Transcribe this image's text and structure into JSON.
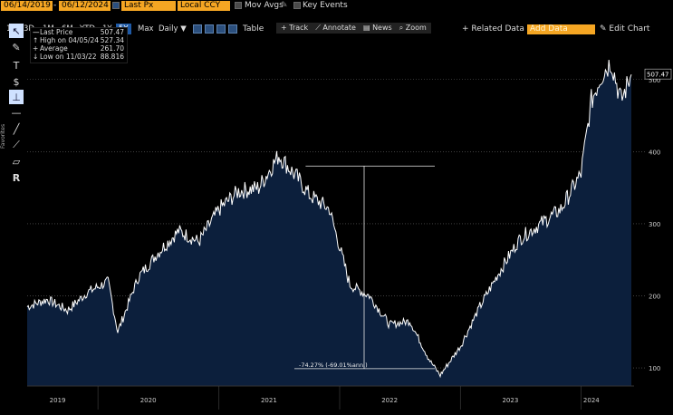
{
  "header": {
    "start_date": "06/14/2019",
    "end_date": "06/12/2024",
    "field": "Last Px",
    "currency": "Local CCY",
    "mov_avgs": "Mov Avgs",
    "key_events": "Key Events",
    "table": "Table",
    "related_data": "+ Related Data",
    "add_data_placeholder": "Add Data",
    "edit_chart": "Edit Chart",
    "periods": [
      "1D",
      "3D",
      "1M",
      "6M",
      "YTD",
      "1Y",
      "5Y",
      "Max"
    ],
    "active_period": "5Y",
    "frequency": "Daily"
  },
  "tools": {
    "track": "Track",
    "annotate": "Annotate",
    "news": "News",
    "zoom": "Zoom"
  },
  "sidebar": {
    "favorites_label": "Favorites"
  },
  "legend": {
    "last_price_label": "Last Price",
    "last_price_value": "507.47",
    "high_label": "High on 04/05/24",
    "high_value": "527.34",
    "average_label": "Average",
    "average_value": "261.70",
    "low_label": "Low on 11/03/22",
    "low_value": "88.816"
  },
  "annotation": {
    "text": "-74.27% (-69.01%ann.)"
  },
  "colors": {
    "area_fill": "#0c1f3c",
    "line": "#ffffff",
    "accent_orange": "#f5a623",
    "active_blue": "#1f5aa6"
  },
  "chart_data": {
    "type": "area",
    "y_tick_labels": [
      "100",
      "200",
      "300",
      "400",
      "500"
    ],
    "ylim": [
      75,
      560
    ],
    "x_tick_labels": [
      "2019",
      "2020",
      "2021",
      "2022",
      "2023",
      "2024"
    ],
    "last_value_label": "507.47",
    "x": [
      "2019-06",
      "2019-08",
      "2019-10",
      "2019-12",
      "2020-02",
      "2020-03",
      "2020-05",
      "2020-07",
      "2020-09",
      "2020-11",
      "2021-01",
      "2021-03",
      "2021-05",
      "2021-07",
      "2021-09",
      "2021-10",
      "2021-11",
      "2021-12",
      "2022-02",
      "2022-04",
      "2022-06",
      "2022-08",
      "2022-10",
      "2022-11",
      "2023-01",
      "2023-03",
      "2023-05",
      "2023-07",
      "2023-09",
      "2023-11",
      "2024-01",
      "2024-02",
      "2024-03",
      "2024-04",
      "2024-05",
      "2024-06"
    ],
    "values": [
      185,
      195,
      180,
      205,
      220,
      150,
      225,
      260,
      290,
      275,
      320,
      345,
      350,
      395,
      360,
      340,
      330,
      320,
      215,
      200,
      160,
      165,
      110,
      90,
      130,
      185,
      235,
      280,
      300,
      320,
      370,
      470,
      505,
      525,
      470,
      507
    ]
  }
}
